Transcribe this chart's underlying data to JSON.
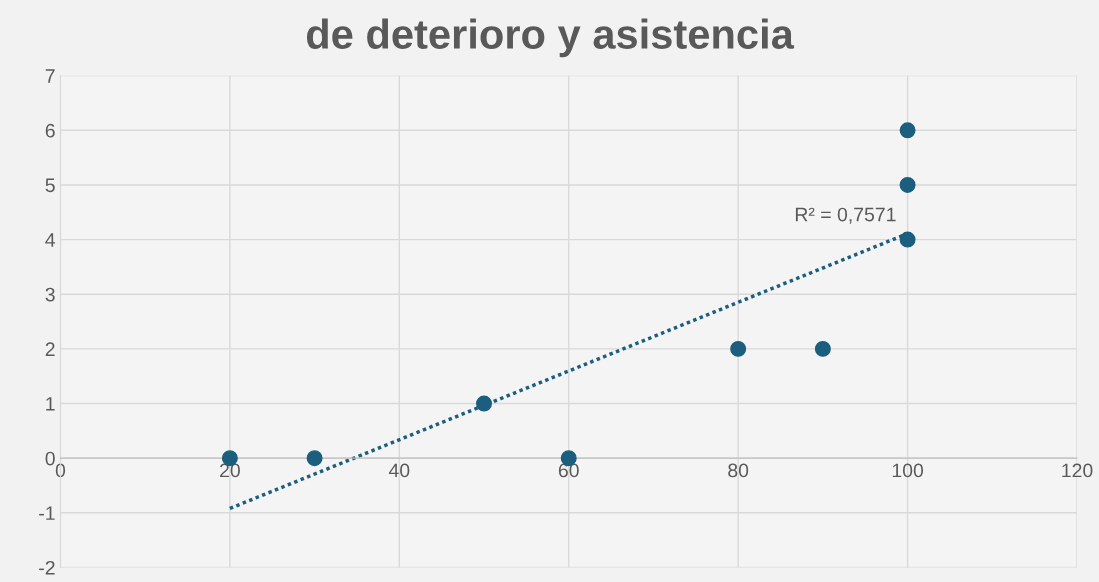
{
  "chart_data": {
    "type": "scatter",
    "title": "de deterioro y asistencia",
    "series": [
      {
        "marker": "circle",
        "color": "#1b5e7e",
        "x": [
          20,
          30,
          50,
          60,
          80,
          90,
          100,
          100,
          100
        ],
        "values": [
          0,
          0,
          1,
          0,
          2,
          2,
          6,
          5,
          4
        ]
      },
      {
        "type": "line",
        "color": "#1b5e7e",
        "x": [
          20,
          100
        ],
        "values": [
          -0.92,
          4.11
        ],
        "line_style": "dotted"
      }
    ],
    "annotations": [
      "R² = 0,7571"
    ],
    "xlim": [
      0,
      120
    ],
    "xticks": [
      0,
      20,
      40,
      60,
      80,
      100,
      120
    ],
    "ylim": [
      -2,
      7
    ],
    "yticks": [
      -2,
      -1,
      0,
      1,
      2,
      3,
      4,
      5,
      6,
      7
    ],
    "grid": true
  }
}
